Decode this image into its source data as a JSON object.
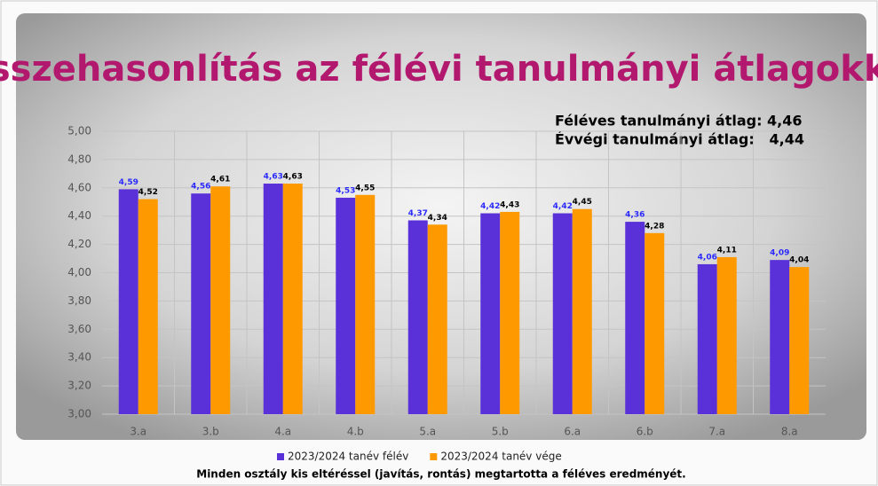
{
  "chart_data": {
    "type": "bar",
    "title": "Összehasonlítás az félévi tanulmányi átlagokkal",
    "annotations": [
      "Féléves tanulmányi átlag: 4,46",
      "Évvégi tanulmányi átlag:   4,44"
    ],
    "caption": "Minden osztály kis eltéréssel (javítás, rontás) megtartotta a féléves eredményét.",
    "categories": [
      "3.a",
      "3.b",
      "4.a",
      "4.b",
      "5.a",
      "5.b",
      "6.a",
      "6.b",
      "7.a",
      "8.a"
    ],
    "series": [
      {
        "name": "2023/2024 tanév félév",
        "color": "#5a31d8",
        "label_color": "#2a2aff",
        "values": [
          4.59,
          4.56,
          4.63,
          4.53,
          4.37,
          4.42,
          4.42,
          4.36,
          4.06,
          4.09
        ],
        "value_labels": [
          "4,59",
          "4,56",
          "4,63",
          "4,53",
          "4,37",
          "4,42",
          "4,42",
          "4,36",
          "4,06",
          "4,09"
        ]
      },
      {
        "name": "2023/2024 tanév vége",
        "color": "#ff9900",
        "label_color": "#000000",
        "values": [
          4.52,
          4.61,
          4.63,
          4.55,
          4.34,
          4.43,
          4.45,
          4.28,
          4.11,
          4.04
        ],
        "value_labels": [
          "4,52",
          "4,61",
          "4,63",
          "4,55",
          "4,34",
          "4,43",
          "4,45",
          "4,28",
          "4,11",
          "4,04"
        ]
      }
    ],
    "ylim": [
      3,
      5
    ],
    "yticks": [
      {
        "value": 3,
        "label": "3,00"
      },
      {
        "value": 3.2,
        "label": "3,20"
      },
      {
        "value": 3.4,
        "label": "3,40"
      },
      {
        "value": 3.6,
        "label": "3,60"
      },
      {
        "value": 3.8,
        "label": "3,80"
      },
      {
        "value": 4,
        "label": "4,00"
      },
      {
        "value": 4.2,
        "label": "4,20"
      },
      {
        "value": 4.4,
        "label": "4,40"
      },
      {
        "value": 4.6,
        "label": "4,60"
      },
      {
        "value": 4.8,
        "label": "4,80"
      },
      {
        "value": 5,
        "label": "5,00"
      }
    ],
    "grid": true,
    "legend": "bottom"
  }
}
